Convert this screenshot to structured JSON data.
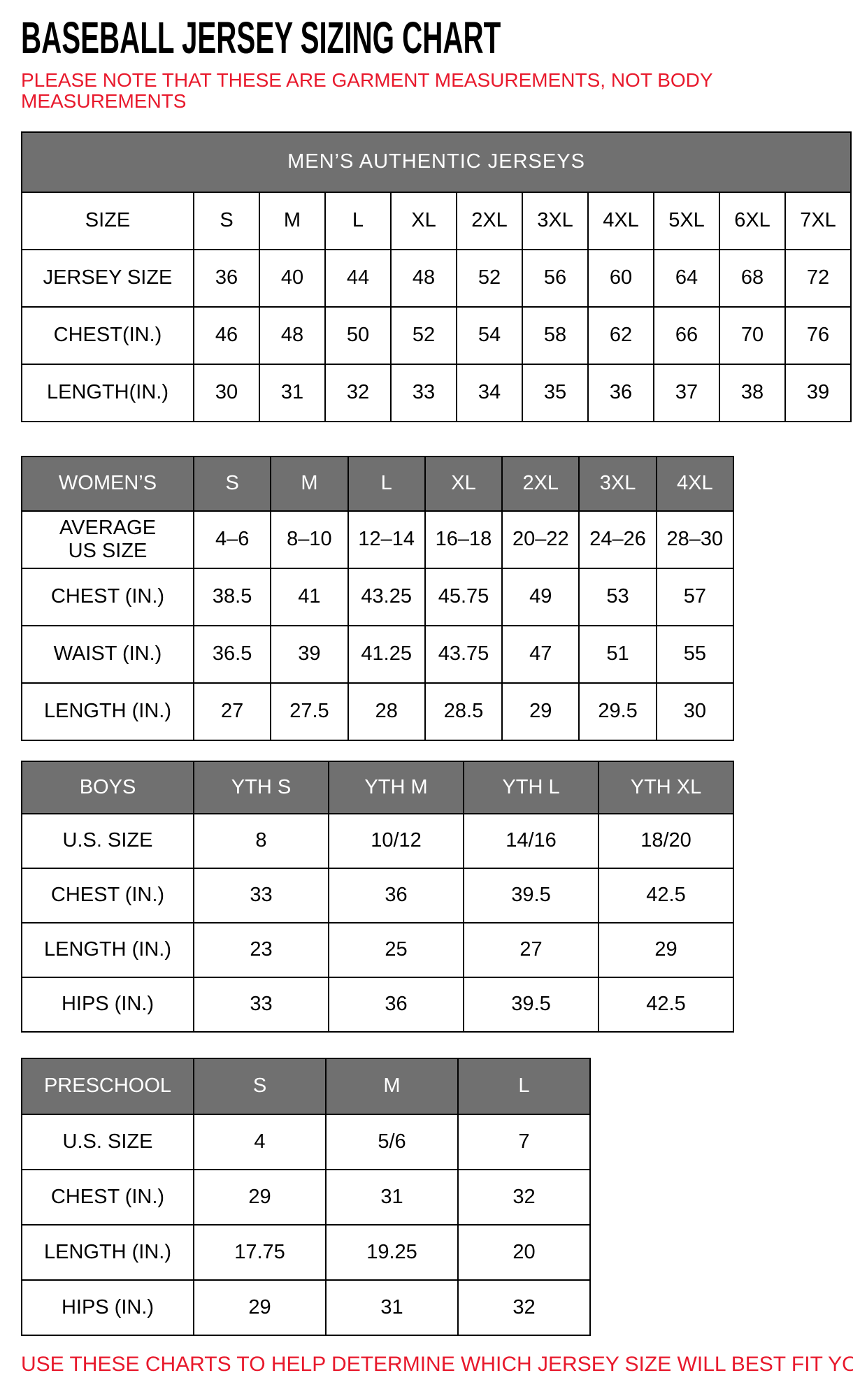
{
  "page": {
    "title": "BASEBALL JERSEY SIZING CHART",
    "note_line1": "PLEASE NOTE THAT THESE ARE GARMENT MEASUREMENTS, NOT BODY",
    "note_line2": "MEASUREMENTS",
    "footer_note": "USE THESE CHARTS TO HELP DETERMINE WHICH JERSEY SIZE WILL BEST FIT YOU."
  },
  "colors": {
    "header_gray": "#707070",
    "note_red": "#e8192c"
  },
  "tables": [
    {
      "id": "mens",
      "banner": "MEN’S AUTHENTIC JERSEYS",
      "rows": [
        {
          "label": "SIZE",
          "values": [
            "S",
            "M",
            "L",
            "XL",
            "2XL",
            "3XL",
            "4XL",
            "5XL",
            "6XL",
            "7XL"
          ]
        },
        {
          "label": "JERSEY SIZE",
          "values": [
            "36",
            "40",
            "44",
            "48",
            "52",
            "56",
            "60",
            "64",
            "68",
            "72"
          ]
        },
        {
          "label": "CHEST(IN.)",
          "values": [
            "46",
            "48",
            "50",
            "52",
            "54",
            "58",
            "62",
            "66",
            "70",
            "76"
          ]
        },
        {
          "label": "LENGTH(IN.)",
          "values": [
            "30",
            "31",
            "32",
            "33",
            "34",
            "35",
            "36",
            "37",
            "38",
            "39"
          ]
        }
      ]
    },
    {
      "id": "womens",
      "header": {
        "label": "WOMEN’S",
        "columns": [
          "S",
          "M",
          "L",
          "XL",
          "2XL",
          "3XL",
          "4XL"
        ]
      },
      "rows": [
        {
          "label": "AVERAGE\nUS SIZE",
          "values": [
            "4–6",
            "8–10",
            "12–14",
            "16–18",
            "20–22",
            "24–26",
            "28–30"
          ]
        },
        {
          "label": "CHEST (IN.)",
          "values": [
            "38.5",
            "41",
            "43.25",
            "45.75",
            "49",
            "53",
            "57"
          ]
        },
        {
          "label": "WAIST (IN.)",
          "values": [
            "36.5",
            "39",
            "41.25",
            "43.75",
            "47",
            "51",
            "55"
          ]
        },
        {
          "label": "LENGTH (IN.)",
          "values": [
            "27",
            "27.5",
            "28",
            "28.5",
            "29",
            "29.5",
            "30"
          ]
        }
      ]
    },
    {
      "id": "boys",
      "header": {
        "label": "BOYS",
        "columns": [
          "YTH S",
          "YTH M",
          "YTH L",
          "YTH XL"
        ]
      },
      "rows": [
        {
          "label": "U.S. SIZE",
          "values": [
            "8",
            "10/12",
            "14/16",
            "18/20"
          ]
        },
        {
          "label": "CHEST (IN.)",
          "values": [
            "33",
            "36",
            "39.5",
            "42.5"
          ]
        },
        {
          "label": "LENGTH (IN.)",
          "values": [
            "23",
            "25",
            "27",
            "29"
          ]
        },
        {
          "label": "HIPS (IN.)",
          "values": [
            "33",
            "36",
            "39.5",
            "42.5"
          ]
        }
      ]
    },
    {
      "id": "preschool",
      "header": {
        "label": "PRESCHOOL",
        "columns": [
          "S",
          "M",
          "L"
        ]
      },
      "rows": [
        {
          "label": "U.S. SIZE",
          "values": [
            "4",
            "5/6",
            "7"
          ]
        },
        {
          "label": "CHEST (IN.)",
          "values": [
            "29",
            "31",
            "32"
          ]
        },
        {
          "label": "LENGTH (IN.)",
          "values": [
            "17.75",
            "19.25",
            "20"
          ]
        },
        {
          "label": "HIPS (IN.)",
          "values": [
            "29",
            "31",
            "32"
          ]
        }
      ]
    }
  ]
}
